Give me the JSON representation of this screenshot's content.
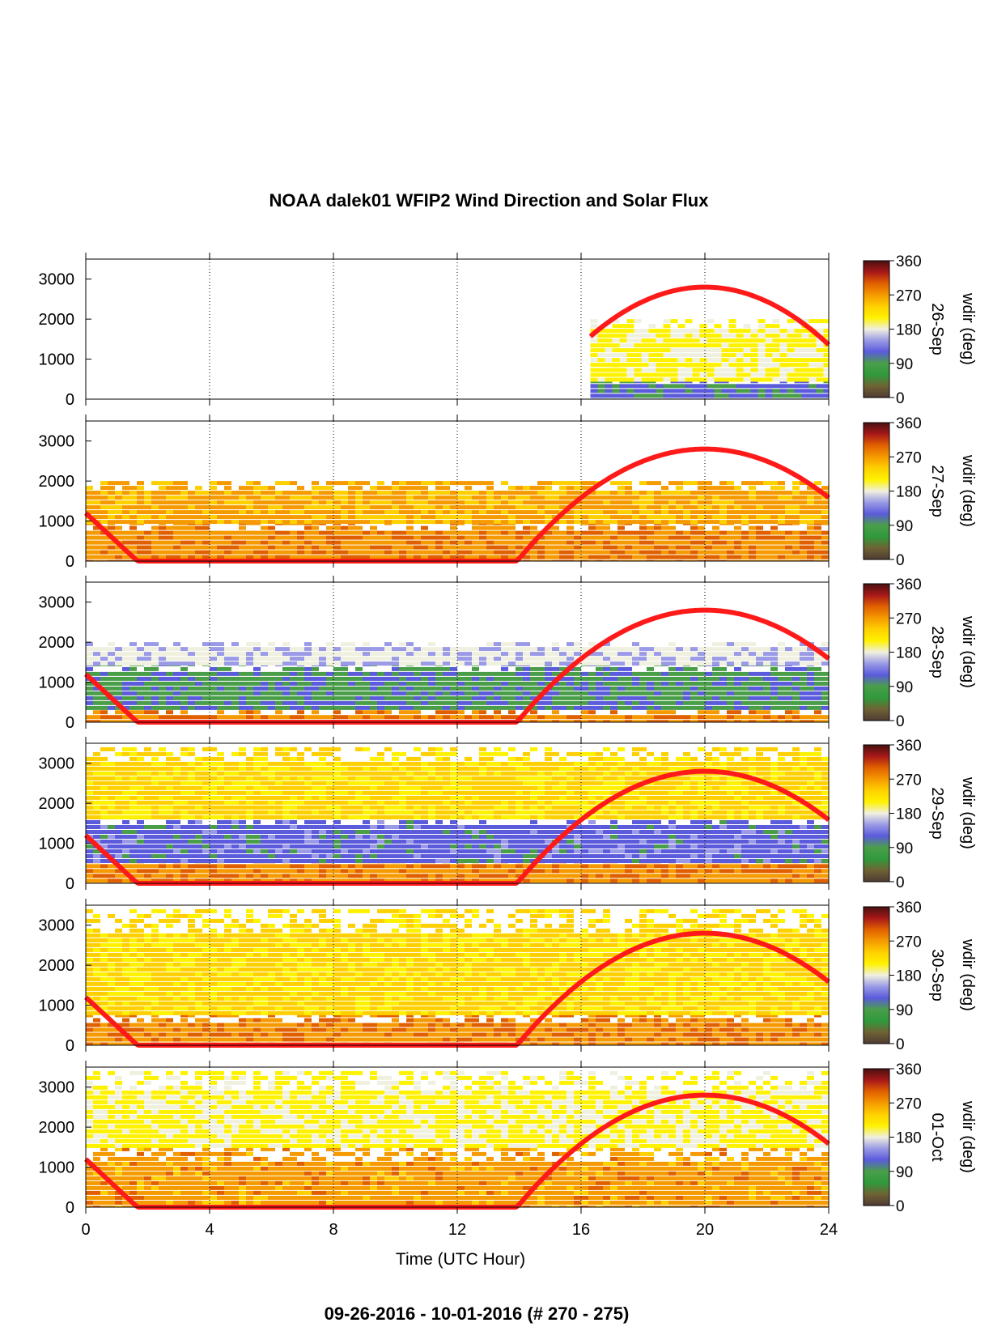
{
  "title": "NOAA dalek01 WFIP2 Wind Direction and Solar Flux",
  "footer": "09-26-2016 - 10-01-2016   (# 270 - 275)",
  "xlabel": "Time (UTC Hour)",
  "colorbar_label": "wdir (deg)",
  "colormap": [
    "#4f3b33",
    "#6f6234",
    "#2f9a3c",
    "#4a9e4a",
    "#5b5bdc",
    "#9a9ae6",
    "#f0f0e0",
    "#fff200",
    "#ffd000",
    "#f59a00",
    "#e06000",
    "#a81818",
    "#4a1010"
  ],
  "solar_color": "#ff1a1a",
  "chart_data": [
    {
      "type": "heatmap",
      "panel_label": "26-Sep",
      "x_range": [
        0,
        24
      ],
      "ylim": [
        0,
        3500
      ],
      "xticks": [
        0,
        4,
        8,
        12,
        16,
        20,
        24
      ],
      "yticks": [
        0,
        1000,
        2000,
        3000
      ],
      "colorbar": {
        "min": 0,
        "max": 360,
        "ticks": [
          0,
          90,
          180,
          270,
          360
        ]
      },
      "data_start_hour": 16.3,
      "solar_flux_peak_hour": 20,
      "wind_direction_layers_deg": [
        {
          "from_m": 0,
          "to_m": 500,
          "wdir": 110
        },
        {
          "from_m": 500,
          "to_m": 900,
          "wdir": 200
        },
        {
          "from_m": 900,
          "to_m": 2000,
          "wdir": 200
        }
      ]
    },
    {
      "type": "heatmap",
      "panel_label": "27-Sep",
      "x_range": [
        0,
        24
      ],
      "ylim": [
        0,
        3500
      ],
      "xticks": [
        0,
        4,
        8,
        12,
        16,
        20,
        24
      ],
      "yticks": [
        0,
        1000,
        2000,
        3000
      ],
      "colorbar": {
        "min": 0,
        "max": 360,
        "ticks": [
          0,
          90,
          180,
          270,
          360
        ]
      },
      "wind_direction_layers_deg": [
        {
          "from_m": 0,
          "to_m": 1000,
          "wdir": 280
        },
        {
          "from_m": 1000,
          "to_m": 2000,
          "wdir": 260
        }
      ]
    },
    {
      "type": "heatmap",
      "panel_label": "28-Sep",
      "x_range": [
        0,
        24
      ],
      "ylim": [
        0,
        3500
      ],
      "xticks": [
        0,
        4,
        8,
        12,
        16,
        20,
        24
      ],
      "yticks": [
        0,
        1000,
        2000,
        3000
      ],
      "colorbar": {
        "min": 0,
        "max": 360,
        "ticks": [
          0,
          90,
          180,
          270,
          360
        ]
      },
      "wind_direction_layers_deg": [
        {
          "from_m": 0,
          "to_m": 300,
          "wdir": 280
        },
        {
          "from_m": 300,
          "to_m": 1500,
          "wdir": 100
        },
        {
          "from_m": 1500,
          "to_m": 2000,
          "wdir": 170
        }
      ]
    },
    {
      "type": "heatmap",
      "panel_label": "29-Sep",
      "x_range": [
        0,
        24
      ],
      "ylim": [
        0,
        3500
      ],
      "xticks": [
        0,
        4,
        8,
        12,
        16,
        20,
        24
      ],
      "yticks": [
        0,
        1000,
        2000,
        3000
      ],
      "colorbar": {
        "min": 0,
        "max": 360,
        "ticks": [
          0,
          90,
          180,
          270,
          360
        ]
      },
      "wind_direction_layers_deg": [
        {
          "from_m": 0,
          "to_m": 600,
          "wdir": 280
        },
        {
          "from_m": 600,
          "to_m": 1700,
          "wdir": 120
        },
        {
          "from_m": 1700,
          "to_m": 3400,
          "wdir": 230
        }
      ]
    },
    {
      "type": "heatmap",
      "panel_label": "30-Sep",
      "x_range": [
        0,
        24
      ],
      "ylim": [
        0,
        3500
      ],
      "xticks": [
        0,
        4,
        8,
        12,
        16,
        20,
        24
      ],
      "yticks": [
        0,
        1000,
        2000,
        3000
      ],
      "colorbar": {
        "min": 0,
        "max": 360,
        "ticks": [
          0,
          90,
          180,
          270,
          360
        ]
      },
      "wind_direction_layers_deg": [
        {
          "from_m": 0,
          "to_m": 800,
          "wdir": 280
        },
        {
          "from_m": 800,
          "to_m": 3400,
          "wdir": 230
        }
      ]
    },
    {
      "type": "heatmap",
      "panel_label": "01-Oct",
      "x_range": [
        0,
        24
      ],
      "ylim": [
        0,
        3500
      ],
      "xticks": [
        0,
        4,
        8,
        12,
        16,
        20,
        24
      ],
      "yticks": [
        0,
        1000,
        2000,
        3000
      ],
      "colorbar": {
        "min": 0,
        "max": 360,
        "ticks": [
          0,
          90,
          180,
          270,
          360
        ]
      },
      "wind_direction_layers_deg": [
        {
          "from_m": 0,
          "to_m": 1500,
          "wdir": 270
        },
        {
          "from_m": 1500,
          "to_m": 3400,
          "wdir": 200
        }
      ]
    }
  ]
}
